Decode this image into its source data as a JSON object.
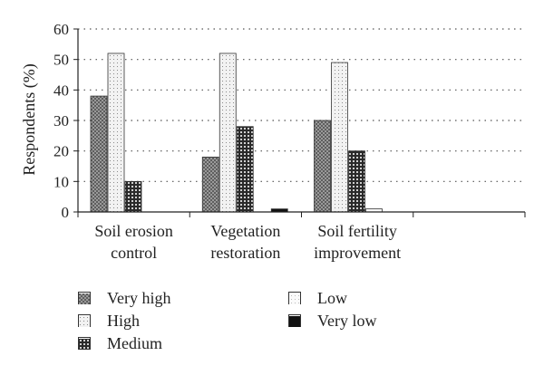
{
  "chart_data": {
    "type": "bar",
    "categories": [
      [
        "Soil erosion",
        "control"
      ],
      [
        "Vegetation",
        "restoration"
      ],
      [
        "Soil fertility",
        "improvement"
      ],
      [
        "",
        ""
      ]
    ],
    "series": [
      {
        "name": "Very high",
        "values": [
          38,
          18,
          30,
          null
        ],
        "pattern": "pat-veryhigh"
      },
      {
        "name": "High",
        "values": [
          52,
          52,
          49,
          null
        ],
        "pattern": "pat-high"
      },
      {
        "name": "Medium",
        "values": [
          10,
          28,
          20,
          null
        ],
        "pattern": "pat-medium"
      },
      {
        "name": "Low",
        "values": [
          0,
          0,
          1,
          null
        ],
        "pattern": "pat-low"
      },
      {
        "name": "Very low",
        "values": [
          0,
          1,
          0,
          null
        ],
        "pattern": "pat-verylow"
      }
    ],
    "ylabel": "Respondents (%)",
    "xlabel": "",
    "ylim": [
      0,
      60
    ],
    "yticks": [
      0,
      10,
      20,
      30,
      40,
      50,
      60
    ],
    "grid": "horizontal-dotted",
    "legend_position": "bottom"
  }
}
